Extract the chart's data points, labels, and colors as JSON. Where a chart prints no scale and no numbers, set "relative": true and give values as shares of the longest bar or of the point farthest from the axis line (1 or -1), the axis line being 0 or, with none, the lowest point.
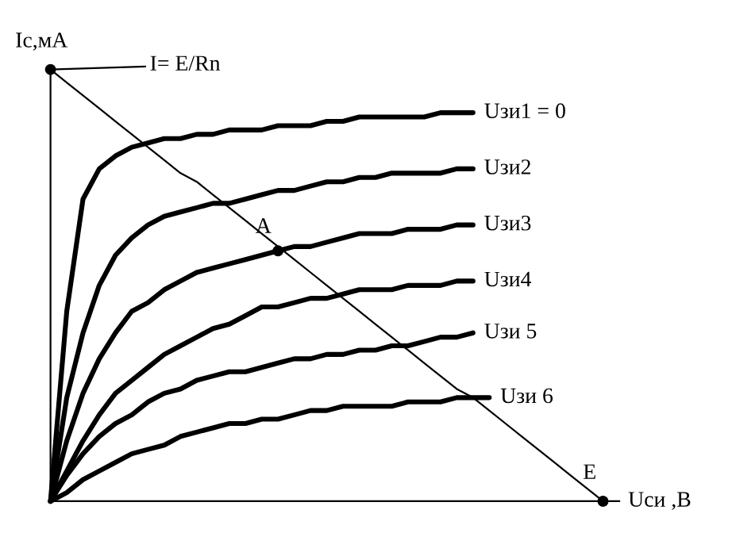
{
  "chart_data": {
    "type": "line",
    "relative": true,
    "xlabel": "Uси ,В",
    "ylabel": "Iс,мА",
    "categories": [
      null,
      null,
      null,
      null,
      null,
      null,
      null,
      null,
      null,
      null,
      null,
      null,
      null,
      null,
      null,
      null,
      null,
      null,
      null,
      null,
      null,
      null,
      null,
      null,
      null,
      null,
      null,
      null,
      null,
      null,
      null,
      null,
      null,
      null,
      null,
      null
    ],
    "grid": false,
    "line_style": "solid",
    "series": [
      {
        "name": "Uзи1 = 0",
        "color": "#000000",
        "values": [
          0,
          0.44,
          0.7,
          0.77,
          0.8,
          0.82,
          0.83,
          0.84,
          0.84,
          0.85,
          0.85,
          0.86,
          0.86,
          0.86,
          0.87,
          0.87,
          0.87,
          0.88,
          0.88,
          0.89,
          0.89,
          0.89,
          0.89,
          0.89,
          0.9,
          0.9,
          0.9,
          null,
          null,
          null,
          null,
          null,
          null,
          null,
          null,
          null
        ]
      },
      {
        "name": "Uзи2",
        "color": "#000000",
        "values": [
          0,
          0.24,
          0.39,
          0.5,
          0.57,
          0.61,
          0.64,
          0.66,
          0.67,
          0.68,
          0.69,
          0.69,
          0.7,
          0.71,
          0.72,
          0.72,
          0.73,
          0.74,
          0.74,
          0.75,
          0.75,
          0.76,
          0.76,
          0.76,
          0.76,
          0.77,
          0.77,
          null,
          null,
          null,
          null,
          null,
          null,
          null,
          null,
          null
        ]
      },
      {
        "name": "Uзи3",
        "color": "#000000",
        "values": [
          0,
          0.14,
          0.25,
          0.33,
          0.39,
          0.44,
          0.46,
          0.49,
          0.51,
          0.53,
          0.54,
          0.55,
          0.56,
          0.57,
          0.58,
          0.59,
          0.59,
          0.6,
          0.61,
          0.62,
          0.62,
          0.62,
          0.63,
          0.63,
          0.63,
          0.64,
          0.64,
          null,
          null,
          null,
          null,
          null,
          null,
          null,
          null,
          null
        ]
      },
      {
        "name": "Uзи4",
        "color": "#000000",
        "values": [
          0,
          0.07,
          0.14,
          0.2,
          0.25,
          0.28,
          0.31,
          0.34,
          0.36,
          0.38,
          0.4,
          0.41,
          0.43,
          0.45,
          0.45,
          0.46,
          0.47,
          0.47,
          0.48,
          0.49,
          0.49,
          0.49,
          0.5,
          0.5,
          0.5,
          0.51,
          0.51,
          null,
          null,
          null,
          null,
          null,
          null,
          null,
          null,
          null
        ]
      },
      {
        "name": "Uзи 5",
        "color": "#000000",
        "values": [
          0,
          0.06,
          0.11,
          0.15,
          0.18,
          0.2,
          0.23,
          0.25,
          0.26,
          0.28,
          0.29,
          0.3,
          0.3,
          0.31,
          0.32,
          0.33,
          0.33,
          0.34,
          0.34,
          0.35,
          0.35,
          0.36,
          0.36,
          0.37,
          0.38,
          0.38,
          0.39,
          null,
          null,
          null,
          null,
          null,
          null,
          null,
          null,
          null
        ]
      },
      {
        "name": "Uзи 6",
        "color": "#000000",
        "values": [
          0,
          0.02,
          0.05,
          0.07,
          0.09,
          0.11,
          0.12,
          0.13,
          0.15,
          0.16,
          0.17,
          0.18,
          0.18,
          0.19,
          0.19,
          0.2,
          0.21,
          0.21,
          0.22,
          0.22,
          0.22,
          0.22,
          0.23,
          0.23,
          0.23,
          0.24,
          0.24,
          0.24,
          null,
          null,
          null,
          null,
          null,
          null,
          null,
          null
        ]
      },
      {
        "color": "#000000",
        "values": [
          1,
          0.97,
          0.94,
          0.91,
          0.88,
          0.85,
          0.82,
          0.79,
          0.76,
          0.74,
          0.71,
          0.68,
          0.65,
          0.62,
          0.59,
          0.56,
          0.53,
          0.5,
          0.47,
          0.44,
          0.41,
          0.38,
          0.35,
          0.32,
          0.29,
          0.26,
          0.24,
          0.21,
          0.18,
          0.15,
          0.12,
          0.09,
          0.06,
          0.03,
          0,
          null
        ]
      }
    ],
    "annotations": [
      "I= E/Rn",
      {
        "text": "A",
        "y": 0.58
      },
      {
        "text": "E",
        "y": 0
      }
    ]
  }
}
